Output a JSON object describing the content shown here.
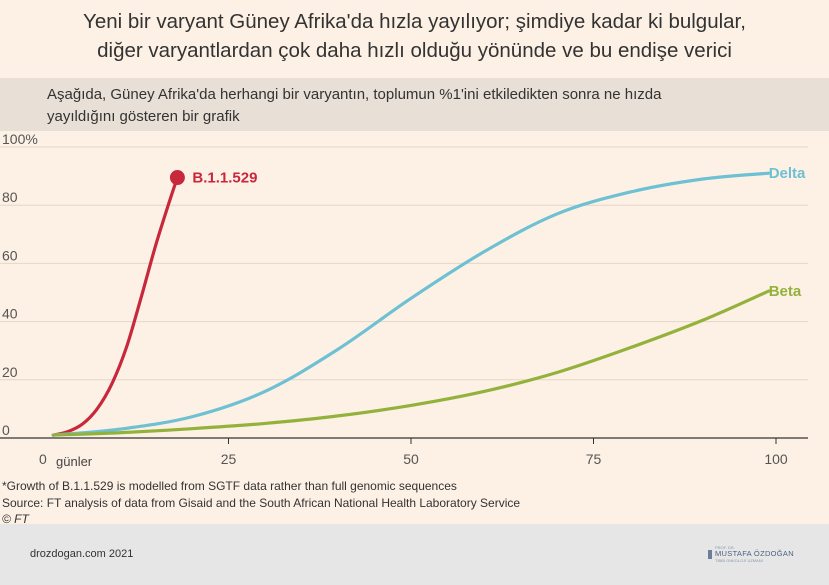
{
  "header": {
    "title_line1": "Yeni bir varyant Güney Afrika'da hızla yayılıyor; şimdiye kadar ki bulgular,",
    "title_line2": "diğer varyantlardan çok daha hızlı olduğu yönünde ve bu endişe verici",
    "subtitle_line1": "Aşağıda, Güney Afrika'da herhangi bir varyantın, toplumun %1'ini etkiledikten sonra ne hızda",
    "subtitle_line2": "yayıldığını gösteren bir grafik"
  },
  "chart_data": {
    "type": "line",
    "xlim": [
      0,
      105
    ],
    "ylim": [
      0,
      100
    ],
    "x_ticks": [
      0,
      25,
      50,
      75,
      100
    ],
    "x_tick_labels": [
      "0",
      "25",
      "50",
      "75",
      "100"
    ],
    "x_unit_label": "günler",
    "y_ticks": [
      0,
      20,
      40,
      60,
      80,
      100
    ],
    "y_tick_labels": [
      "0",
      "20",
      "40",
      "60",
      "80",
      "100%"
    ],
    "grid": true,
    "series": [
      {
        "name": "B.1.1.529",
        "color": "#c8283c",
        "x": [
          1,
          3,
          5,
          7,
          9,
          11,
          13,
          15,
          17,
          18
        ],
        "y": [
          1,
          2.2,
          4.8,
          10,
          18.5,
          31,
          48,
          66,
          82,
          89.5
        ],
        "end_marker": true
      },
      {
        "name": "Delta",
        "color": "#6ec0d3",
        "x": [
          1,
          10,
          20,
          30,
          40,
          50,
          60,
          70,
          80,
          90,
          99
        ],
        "y": [
          1,
          3,
          7.3,
          16,
          30.5,
          48,
          64,
          77,
          84.5,
          89,
          91
        ]
      },
      {
        "name": "Beta",
        "color": "#93b23c",
        "x": [
          1,
          10,
          20,
          30,
          40,
          50,
          60,
          70,
          80,
          90,
          99
        ],
        "y": [
          1,
          1.8,
          3.2,
          5,
          7.6,
          11.2,
          16,
          22.5,
          31,
          40.5,
          50.5
        ]
      }
    ]
  },
  "notes": {
    "footnote": "*Growth of B.1.1.529 is modelled from SGTF data rather than full genomic sequences",
    "source": "Source: FT analysis of data from Gisaid and the South African National Health Laboratory Service",
    "copyright": "© FT"
  },
  "footer": {
    "credit": "drozdogan.com 2021",
    "logo_small": "PROF. DR.",
    "logo_big": "MUSTAFA ÖZDOĞAN",
    "logo_small2": "TIBBİ ONKOLOJİ UZMANI"
  },
  "colors": {
    "background": "#fdf1e5",
    "band": "#e8dfd6",
    "footer": "#e6e6e6",
    "grid": "#e3d6c8"
  }
}
